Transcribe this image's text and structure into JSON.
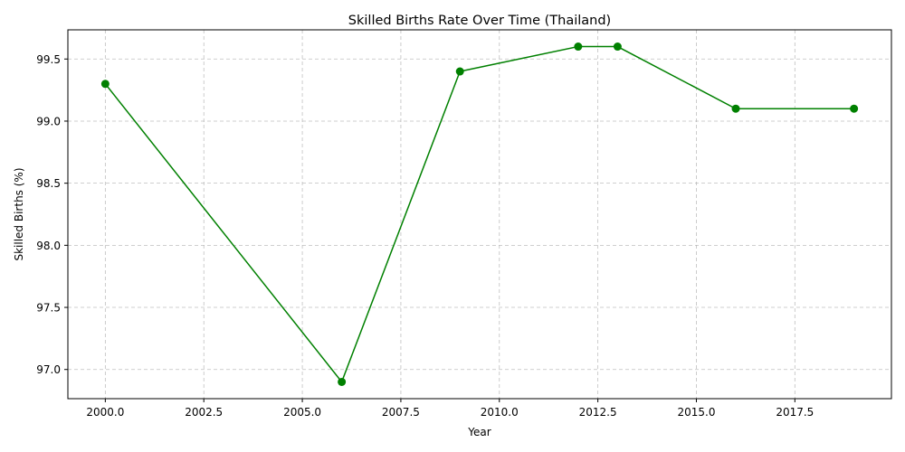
{
  "chart_data": {
    "type": "line",
    "title": "Skilled Births Rate Over Time (Thailand)",
    "xlabel": "Year",
    "ylabel": "Skilled Births (%)",
    "xlim": [
      1999.05,
      2019.95
    ],
    "ylim": [
      96.765,
      99.735
    ],
    "x_ticks": [
      2000.0,
      2002.5,
      2005.0,
      2007.5,
      2010.0,
      2012.5,
      2015.0,
      2017.5
    ],
    "x_tick_labels": [
      "2000.0",
      "2002.5",
      "2005.0",
      "2007.5",
      "2010.0",
      "2012.5",
      "2015.0",
      "2017.5"
    ],
    "y_ticks": [
      97.0,
      97.5,
      98.0,
      98.5,
      99.0,
      99.5
    ],
    "y_tick_labels": [
      "97.0",
      "97.5",
      "98.0",
      "98.5",
      "99.0",
      "99.5"
    ],
    "grid": true,
    "series": [
      {
        "color": "#008000",
        "marker": "circle",
        "x": [
          2000,
          2006,
          2009,
          2012,
          2013,
          2016,
          2019
        ],
        "y": [
          99.3,
          96.9,
          99.4,
          99.6,
          99.6,
          99.1,
          99.1
        ]
      }
    ]
  }
}
